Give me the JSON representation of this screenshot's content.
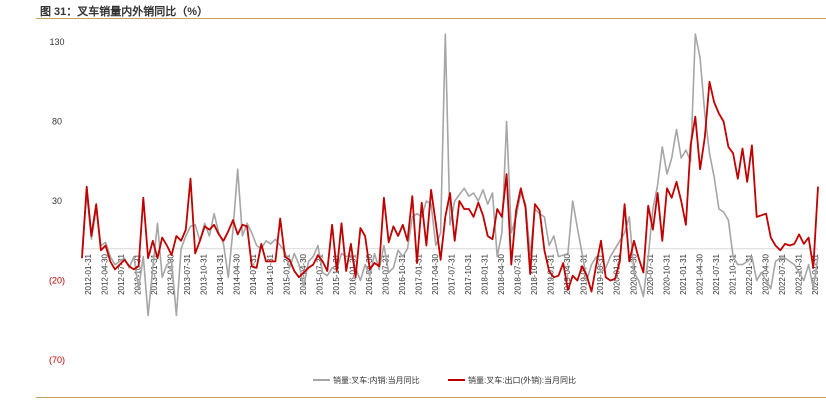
{
  "title": "图 31：叉车销量内外销同比（%）",
  "chart_data": {
    "type": "line",
    "title": "图 31：叉车销量内外销同比（%）",
    "xlabel": "",
    "ylabel": "",
    "ylim": [
      -70,
      130
    ],
    "y_ticks": [
      130,
      80,
      30,
      -20,
      -70
    ],
    "y_tick_labels": [
      "130",
      "80",
      "30",
      "(20)",
      "(70)"
    ],
    "negative_tick_color": "#c00000",
    "grid": false,
    "legend_position": "bottom",
    "x_tick_labels": [
      "2012-01-31",
      "2012-04-30",
      "2012-07-31",
      "2012-10-31",
      "2013-01-31",
      "2013-04-30",
      "2013-07-31",
      "2013-10-31",
      "2014-01-31",
      "2014-04-30",
      "2014-07-31",
      "2014-10-31",
      "2015-01-31",
      "2015-04-30",
      "2015-07-31",
      "2015-10-31",
      "2016-01-31",
      "2016-04-30",
      "2016-07-31",
      "2016-10-31",
      "2017-01-31",
      "2017-04-30",
      "2017-07-31",
      "2017-10-31",
      "2018-01-31",
      "2018-04-30",
      "2018-07-31",
      "2018-10-31",
      "2019-01-31",
      "2019-04-30",
      "2019-07-31",
      "2019-10-31",
      "2020-01-31",
      "2020-04-30",
      "2020-07-31",
      "2020-10-31",
      "2021-01-31",
      "2021-04-30",
      "2021-07-31",
      "2021-10-31",
      "2022-01-31",
      "2022-04-30",
      "2022-07-31",
      "2022-10-31",
      "2023-01-31"
    ],
    "series": [
      {
        "name": "销量:叉车:内销:当月同比",
        "color": "#a6a6a6",
        "values": [
          -2,
          35,
          6,
          25,
          2,
          4,
          -5,
          -10,
          -8,
          -6,
          -12,
          -5,
          -25,
          -5,
          -42,
          -12,
          16,
          -18,
          -10,
          -8,
          -42,
          0,
          8,
          14,
          15,
          5,
          16,
          8,
          22,
          10,
          3,
          -18,
          12,
          50,
          8,
          16,
          10,
          2,
          0,
          5,
          3,
          6,
          2,
          -2,
          -12,
          -3,
          -10,
          -24,
          -8,
          -5,
          2,
          -15,
          -17,
          -12,
          -13,
          -3,
          -5,
          -4,
          -12,
          -20,
          -10,
          -17,
          -3,
          -13,
          2,
          -15,
          -12,
          -1,
          -5,
          0,
          20,
          22,
          20,
          30,
          28,
          2,
          10,
          135,
          15,
          30,
          34,
          38,
          33,
          35,
          30,
          37,
          28,
          35,
          -5,
          10,
          80,
          10,
          20,
          35,
          28,
          -4,
          25,
          22,
          20,
          2,
          8,
          -5,
          -4,
          -3,
          30,
          13,
          -3,
          -20,
          -10,
          -5,
          -15,
          -12,
          -5,
          0,
          5,
          10,
          20,
          -15,
          -20,
          -30,
          -5,
          25,
          40,
          64,
          47,
          57,
          75,
          57,
          62,
          55,
          135,
          120,
          85,
          60,
          45,
          25,
          23,
          18,
          -5,
          -10,
          -10,
          -8,
          -5,
          -20,
          -15,
          -20,
          -25,
          -8,
          -6,
          -6,
          -8,
          -10,
          -15,
          -20,
          -10,
          -25,
          -5
        ]
      },
      {
        "name": "销量:叉车:出口(外销):当月同比",
        "color": "#c00000",
        "values": [
          -6,
          39,
          8,
          28,
          -1,
          2,
          -8,
          -13,
          -10,
          -7,
          -11,
          -13,
          -11,
          32,
          -6,
          5,
          -6,
          7,
          2,
          -4,
          8,
          5,
          12,
          44,
          -3,
          5,
          14,
          12,
          15,
          9,
          5,
          11,
          18,
          9,
          15,
          14,
          -11,
          -12,
          3,
          -8,
          -8,
          -8,
          19,
          -5,
          -7,
          -14,
          -18,
          -15,
          -12,
          -10,
          -4,
          -8,
          -14,
          15,
          -14,
          16,
          -14,
          3,
          -18,
          13,
          8,
          -13,
          -9,
          -11,
          32,
          4,
          14,
          8,
          15,
          5,
          33,
          -9,
          29,
          2,
          37,
          16,
          -7,
          20,
          35,
          5,
          30,
          25,
          25,
          20,
          29,
          21,
          8,
          6,
          25,
          20,
          47,
          -10,
          24,
          38,
          26,
          -16,
          28,
          24,
          -1,
          -14,
          -18,
          -17,
          -9,
          -26,
          -17,
          -20,
          -11,
          -17,
          -27,
          -10,
          5,
          -18,
          -20,
          -19,
          -8,
          28,
          -8,
          5,
          -6,
          -15,
          27,
          12,
          35,
          5,
          38,
          32,
          42,
          30,
          15,
          65,
          83,
          50,
          70,
          105,
          92,
          85,
          80,
          64,
          60,
          44,
          63,
          42,
          65,
          20,
          21,
          22,
          7,
          2,
          -1,
          3,
          2,
          3,
          9,
          3,
          7,
          -12,
          39
        ]
      }
    ]
  }
}
